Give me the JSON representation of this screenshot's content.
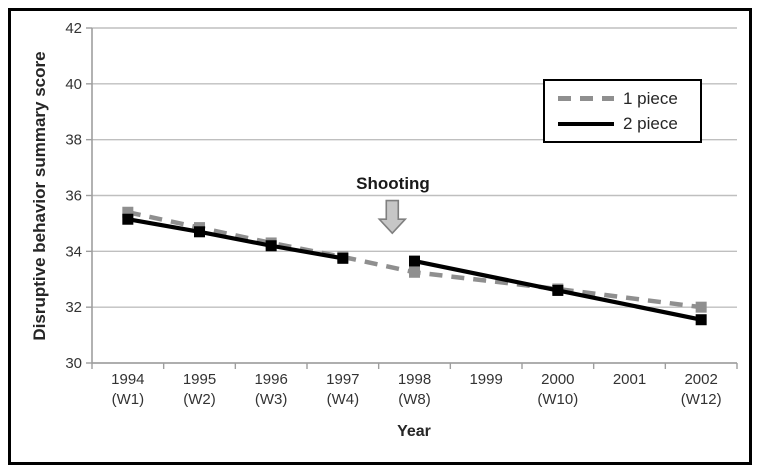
{
  "figure": {
    "background": "#ffffff",
    "border_color": "#000000"
  },
  "colors": {
    "gridline": "#bfbfbf",
    "axis_line": "#9e9e9e",
    "tick_text": "#333333"
  },
  "chart_data": {
    "type": "line",
    "title": "",
    "xlabel": "Year",
    "ylabel": "Disruptive behavior summary score",
    "ylim": [
      30,
      42
    ],
    "yticks": [
      42,
      40,
      38,
      36,
      34,
      32,
      30
    ],
    "grid": "horizontal",
    "legend_position": "upper-right",
    "categories": [
      {
        "year": "1994",
        "wave": "(W1)"
      },
      {
        "year": "1995",
        "wave": "(W2)"
      },
      {
        "year": "1996",
        "wave": "(W3)"
      },
      {
        "year": "1997",
        "wave": "(W4)"
      },
      {
        "year": "1998",
        "wave": "(W8)"
      },
      {
        "year": "1999",
        "wave": ""
      },
      {
        "year": "2000",
        "wave": "(W10)"
      },
      {
        "year": "2001",
        "wave": ""
      },
      {
        "year": "2002",
        "wave": "(W12)"
      }
    ],
    "series": [
      {
        "name": "1 piece",
        "color": "#8f8f8f",
        "line_style": "dashed",
        "line_width": 4.5,
        "dash_pattern": "13 9",
        "marker": "square",
        "marker_size": 11,
        "segments": [
          {
            "x": [
              0,
              1,
              2,
              3,
              4,
              6,
              8
            ],
            "values": [
              35.4,
              34.85,
              34.3,
              33.8,
              33.25,
              32.65,
              32.0
            ]
          }
        ]
      },
      {
        "name": "2 piece",
        "color": "#000000",
        "line_style": "solid",
        "line_width": 4.2,
        "dash_pattern": "",
        "marker": "square",
        "marker_size": 11,
        "segments": [
          {
            "x": [
              0,
              1,
              2,
              3
            ],
            "values": [
              35.15,
              34.7,
              34.2,
              33.75
            ]
          },
          {
            "x": [
              4,
              6,
              8
            ],
            "values": [
              33.65,
              32.6,
              31.55
            ]
          }
        ]
      }
    ],
    "annotation": {
      "text": "Shooting",
      "x_index": 3.69,
      "arrow": {
        "direction": "down",
        "top_value": 35.82,
        "tip_value": 34.65,
        "fill": "#c6c6c6",
        "stroke": "#7f7f7f"
      }
    }
  }
}
